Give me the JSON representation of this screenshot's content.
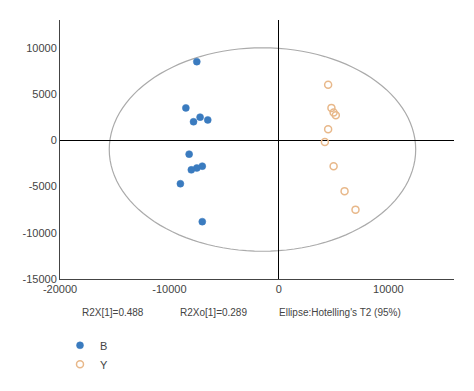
{
  "chart_data": {
    "type": "scatter",
    "series": [
      {
        "name": "B",
        "color": "#3a7bbf",
        "marker": "filled",
        "x": [
          -7500,
          -8500,
          -7200,
          -6500,
          -7800,
          -8200,
          -7000,
          -7500,
          -8000,
          -9000,
          -7000
        ],
        "values": [
          8500,
          3500,
          2500,
          2200,
          2000,
          -1500,
          -2800,
          -3000,
          -3200,
          -4700,
          -8800
        ]
      },
      {
        "name": "Y",
        "color": "#e8b88a",
        "marker": "open",
        "x": [
          4500,
          4800,
          5000,
          5200,
          4500,
          4200,
          5000,
          6000,
          7000
        ],
        "values": [
          6000,
          3500,
          3000,
          2700,
          1200,
          -200,
          -2800,
          -5500,
          -7500
        ]
      }
    ],
    "ellipse": {
      "cx": -1500,
      "cy": -1000,
      "width": 28000,
      "height": 22000,
      "angle": 0,
      "color": "#aaaaaa"
    },
    "annotations": [
      "R2X[1]=0.488",
      "R2Xo[1]=0.289",
      "Ellipse:Hotelling's T2 (95%)"
    ],
    "xlim": [
      -20000,
      16000
    ],
    "ylim": [
      -15000,
      13000
    ],
    "xticks": [
      -20000,
      -10000,
      0,
      10000
    ],
    "yticks": [
      -15000,
      -10000,
      -5000,
      0,
      5000,
      10000
    ],
    "grid": false,
    "legend": "lower left"
  }
}
